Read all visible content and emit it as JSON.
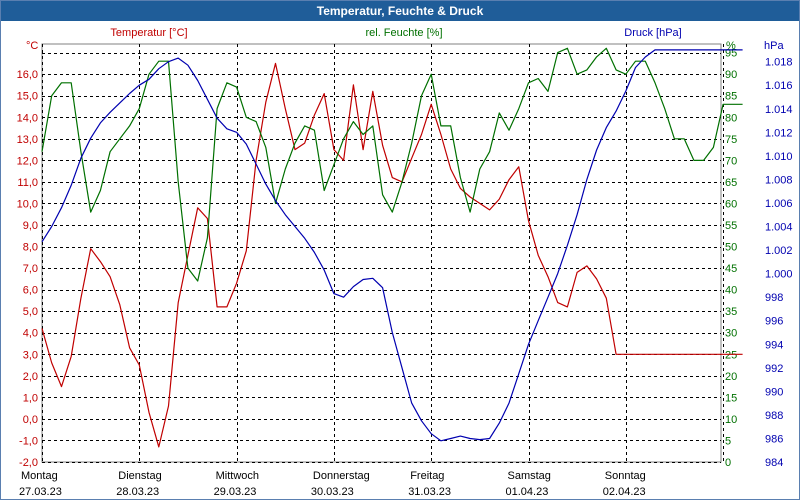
{
  "chart_data": {
    "type": "line",
    "title": "Temperatur, Feuchte & Druck",
    "axes": {
      "temperature": {
        "label": "Temperatur [°C]",
        "unit": "°C",
        "range": [
          -2.0,
          17.4
        ],
        "ticks": [
          "16,0",
          "15,0",
          "14,0",
          "13,0",
          "12,0",
          "11,0",
          "10,0",
          "9,0",
          "8,0",
          "7,0",
          "6,0",
          "5,0",
          "4,0",
          "3,0",
          "2,0",
          "1,0",
          "0,0",
          "-1,0",
          "-2,0"
        ],
        "color": "#c00000"
      },
      "humidity": {
        "label": "rel. Feuchte [%]",
        "unit": "%",
        "range": [
          0,
          97
        ],
        "ticks": [
          "95",
          "90",
          "85",
          "80",
          "75",
          "70",
          "65",
          "60",
          "55",
          "50",
          "45",
          "40",
          "35",
          "30",
          "25",
          "20",
          "15",
          "10",
          "5",
          "0"
        ],
        "color": "#007000"
      },
      "pressure": {
        "label": "Druck [hPa]",
        "unit": "hPa",
        "range": [
          984,
          1019.5
        ],
        "ticks": [
          "1.018",
          "1.016",
          "1.014",
          "1.012",
          "1.010",
          "1.008",
          "1.006",
          "1.004",
          "1.002",
          "1.000",
          "998",
          "996",
          "994",
          "992",
          "990",
          "988",
          "986",
          "984"
        ],
        "color": "#0000b0"
      }
    },
    "days": [
      {
        "name": "Montag",
        "date": "27.03.23"
      },
      {
        "name": "Dienstag",
        "date": "28.03.23"
      },
      {
        "name": "Mittwoch",
        "date": "29.03.23"
      },
      {
        "name": "Donnerstag",
        "date": "30.03.23"
      },
      {
        "name": "Freitag",
        "date": "31.03.23"
      },
      {
        "name": "Samstag",
        "date": "01.04.23"
      },
      {
        "name": "Sonntag",
        "date": "02.04.23"
      }
    ],
    "x_range_days": [
      0,
      7.2
    ],
    "series": [
      {
        "name": "Temperatur",
        "axis": "temperature",
        "color": "#c00000",
        "x": [
          0,
          0.1,
          0.2,
          0.3,
          0.4,
          0.5,
          0.6,
          0.7,
          0.8,
          0.9,
          1.0,
          1.1,
          1.2,
          1.3,
          1.4,
          1.5,
          1.6,
          1.7,
          1.8,
          1.9,
          2.0,
          2.1,
          2.2,
          2.3,
          2.4,
          2.5,
          2.6,
          2.7,
          2.8,
          2.9,
          3.0,
          3.1,
          3.2,
          3.3,
          3.4,
          3.5,
          3.6,
          3.7,
          3.8,
          3.9,
          4.0,
          4.1,
          4.2,
          4.3,
          4.4,
          4.5,
          4.6,
          4.7,
          4.8,
          4.9,
          5.0,
          5.1,
          5.2,
          5.3,
          5.4,
          5.5,
          5.6,
          5.7,
          5.8,
          5.9,
          6.0,
          6.1,
          6.2,
          6.3,
          6.4,
          6.5,
          6.6,
          6.7,
          6.8,
          6.9,
          7.0,
          7.1,
          7.2
        ],
        "values": [
          4.2,
          2.6,
          1.5,
          2.9,
          5.6,
          7.9,
          7.3,
          6.6,
          5.3,
          3.3,
          2.5,
          0.3,
          -1.3,
          0.6,
          5.4,
          7.6,
          9.8,
          9.3,
          5.2,
          5.2,
          6.3,
          7.8,
          12.0,
          14.7,
          16.5,
          14.4,
          12.5,
          12.8,
          14.1,
          15.1,
          12.5,
          12.0,
          15.5,
          12.5,
          15.2,
          12.7,
          11.2,
          11.0,
          12.1,
          13.2,
          14.6,
          13.2,
          11.6,
          10.7,
          10.3,
          10.0,
          9.7,
          10.2,
          11.1,
          11.7,
          9.2,
          7.6,
          6.6,
          5.4,
          5.2,
          6.8,
          7.1,
          6.5,
          5.6,
          3.0,
          3.0,
          3.0,
          3.0,
          3.0,
          3.0,
          3.0,
          3.0,
          3.0,
          3.0,
          3.0,
          3.0,
          3.0,
          3.0
        ]
      },
      {
        "name": "rel. Feuchte",
        "axis": "humidity",
        "color": "#007000",
        "x": [
          0,
          0.1,
          0.2,
          0.3,
          0.4,
          0.5,
          0.6,
          0.7,
          0.8,
          0.9,
          1.0,
          1.1,
          1.2,
          1.3,
          1.4,
          1.5,
          1.6,
          1.7,
          1.8,
          1.9,
          2.0,
          2.1,
          2.2,
          2.3,
          2.4,
          2.5,
          2.6,
          2.7,
          2.8,
          2.9,
          3.0,
          3.1,
          3.2,
          3.3,
          3.4,
          3.5,
          3.6,
          3.7,
          3.8,
          3.9,
          4.0,
          4.1,
          4.2,
          4.3,
          4.4,
          4.5,
          4.6,
          4.7,
          4.8,
          4.9,
          5.0,
          5.1,
          5.2,
          5.3,
          5.4,
          5.5,
          5.6,
          5.7,
          5.8,
          5.9,
          6.0,
          6.1,
          6.2,
          6.3,
          6.4,
          6.5,
          6.6,
          6.7,
          6.8,
          6.9,
          7.0,
          7.1,
          7.2
        ],
        "values": [
          72,
          85,
          88,
          88,
          72,
          58,
          63,
          72,
          75,
          78,
          82,
          90,
          93,
          93,
          65,
          45,
          42,
          52,
          82,
          88,
          87,
          80,
          79,
          73,
          60,
          68,
          74,
          78,
          77,
          63,
          69,
          75,
          79,
          76,
          78,
          62,
          58,
          65,
          74,
          85,
          90,
          78,
          78,
          66,
          58,
          68,
          72,
          81,
          77,
          82,
          88,
          89,
          86,
          95,
          96,
          90,
          91,
          94,
          96,
          91,
          90,
          93,
          93,
          88,
          82,
          75,
          75,
          70,
          70,
          73,
          83,
          83,
          83
        ]
      },
      {
        "name": "Druck",
        "axis": "pressure",
        "color": "#0000b0",
        "x": [
          0,
          0.1,
          0.2,
          0.3,
          0.4,
          0.5,
          0.6,
          0.7,
          0.8,
          0.9,
          1.0,
          1.1,
          1.2,
          1.3,
          1.4,
          1.5,
          1.6,
          1.7,
          1.8,
          1.9,
          2.0,
          2.1,
          2.2,
          2.3,
          2.4,
          2.5,
          2.6,
          2.7,
          2.8,
          2.9,
          3.0,
          3.1,
          3.2,
          3.3,
          3.4,
          3.5,
          3.6,
          3.7,
          3.8,
          3.9,
          4.0,
          4.1,
          4.2,
          4.3,
          4.4,
          4.5,
          4.6,
          4.7,
          4.8,
          4.9,
          5.0,
          5.1,
          5.2,
          5.3,
          5.4,
          5.5,
          5.6,
          5.7,
          5.8,
          5.9,
          6.0,
          6.1,
          6.2,
          6.3,
          6.4,
          6.5,
          6.6,
          6.7,
          6.8,
          6.9,
          7.0,
          7.1,
          7.2
        ],
        "values": [
          1002.7,
          1004.0,
          1005.6,
          1007.5,
          1009.8,
          1011.5,
          1012.8,
          1013.7,
          1014.5,
          1015.3,
          1016.0,
          1016.5,
          1017.4,
          1018.0,
          1018.3,
          1017.7,
          1016.4,
          1014.8,
          1013.2,
          1012.3,
          1012.0,
          1011.0,
          1009.3,
          1007.6,
          1006.2,
          1005.0,
          1004.0,
          1003.0,
          1001.8,
          1000.3,
          998.3,
          998.0,
          998.9,
          999.5,
          999.6,
          998.8,
          995.0,
          992.0,
          989.0,
          987.5,
          986.4,
          985.8,
          986.0,
          986.2,
          986.0,
          985.9,
          986.0,
          987.3,
          989.0,
          991.5,
          994.0,
          996.0,
          998.0,
          1000.0,
          1002.4,
          1005.0,
          1008.0,
          1010.5,
          1012.4,
          1013.8,
          1015.5,
          1017.5,
          1018.4,
          1019.0,
          1019.0,
          1019.0,
          1019.0,
          1019.0,
          1019.0,
          1019.0,
          1019.0,
          1019.0,
          1019.0
        ]
      }
    ]
  }
}
